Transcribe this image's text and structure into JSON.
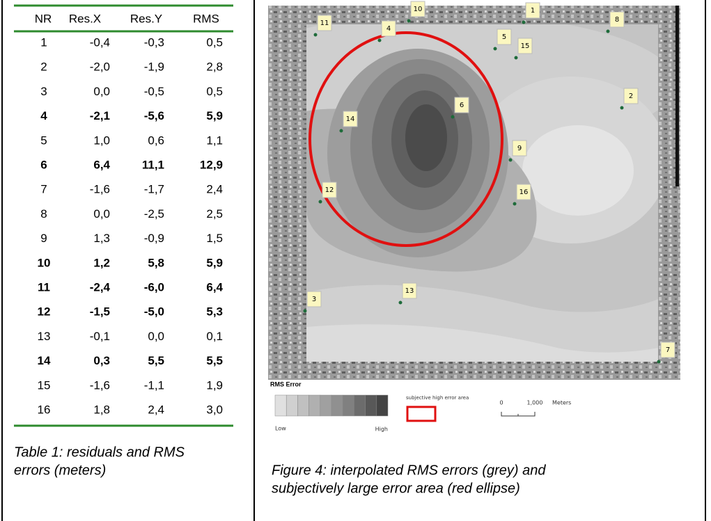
{
  "table": {
    "header": [
      "NR",
      "Res.X",
      "Res.Y",
      "RMS"
    ],
    "rows": [
      {
        "cells": [
          "1",
          "-0,4",
          "-0,3",
          "0,5"
        ],
        "bold": false
      },
      {
        "cells": [
          "2",
          "-2,0",
          "-1,9",
          "2,8"
        ],
        "bold": false
      },
      {
        "cells": [
          "3",
          "0,0",
          "-0,5",
          "0,5"
        ],
        "bold": false
      },
      {
        "cells": [
          "4",
          "-2,1",
          "-5,6",
          "5,9"
        ],
        "bold": true
      },
      {
        "cells": [
          "5",
          "1,0",
          "0,6",
          "1,1"
        ],
        "bold": false
      },
      {
        "cells": [
          "6",
          "6,4",
          "11,1",
          "12,9"
        ],
        "bold": true
      },
      {
        "cells": [
          "7",
          "-1,6",
          "-1,7",
          "2,4"
        ],
        "bold": false
      },
      {
        "cells": [
          "8",
          "0,0",
          "-2,5",
          "2,5"
        ],
        "bold": false
      },
      {
        "cells": [
          "9",
          "1,3",
          "-0,9",
          "1,5"
        ],
        "bold": false
      },
      {
        "cells": [
          "10",
          "1,2",
          "5,8",
          "5,9"
        ],
        "bold": true
      },
      {
        "cells": [
          "11",
          "-2,4",
          "-6,0",
          "6,4"
        ],
        "bold": true
      },
      {
        "cells": [
          "12",
          "-1,5",
          "-5,0",
          "5,3"
        ],
        "bold": true
      },
      {
        "cells": [
          "13",
          "-0,1",
          "0,0",
          "0,1"
        ],
        "bold": false
      },
      {
        "cells": [
          "14",
          "0,3",
          "5,5",
          "5,5"
        ],
        "bold": true
      },
      {
        "cells": [
          "15",
          "-1,6",
          "-1,1",
          "1,9"
        ],
        "bold": false
      },
      {
        "cells": [
          "16",
          "1,8",
          "2,4",
          "3,0"
        ],
        "bold": false
      }
    ]
  },
  "table_caption": [
    "Table 1: residuals and RMS",
    "errors (meters)"
  ],
  "figure": {
    "points": [
      "1",
      "2",
      "3",
      "4",
      "5",
      "6",
      "7",
      "8",
      "9",
      "10",
      "11",
      "12",
      "13",
      "14",
      "15",
      "16"
    ],
    "legend_title": "RMS Error",
    "legend_low": "Low",
    "legend_high": "High",
    "ellipse_label": "subjective high error area",
    "scale_labels": [
      "0",
      "1,000"
    ],
    "scale_unit": "Meters",
    "caption": [
      "Figure 4:  interpolated RMS errors (grey) and",
      "subjectively large error area (red ellipse)"
    ]
  }
}
